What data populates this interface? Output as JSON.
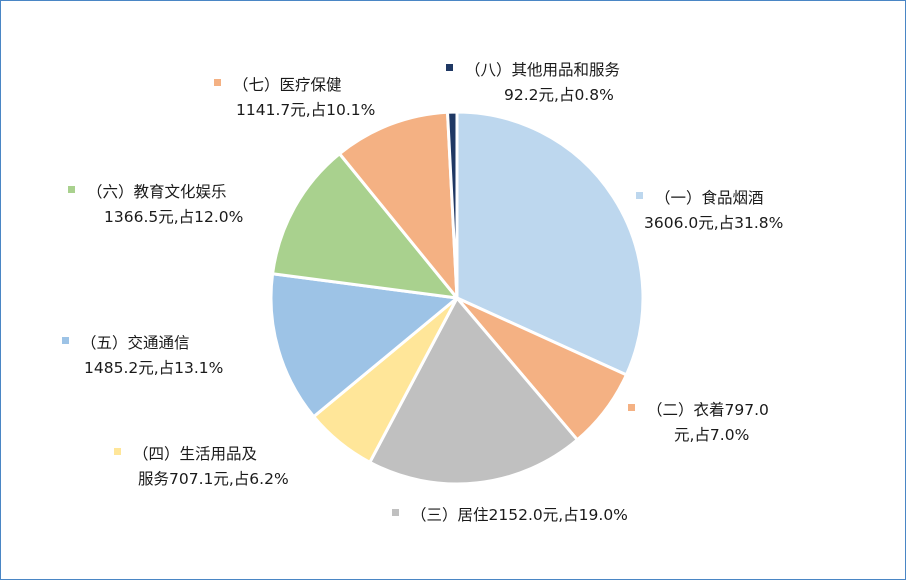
{
  "chart_data": {
    "type": "pie",
    "start_angle_deg": 0,
    "slices": [
      {
        "label": "（一）食品烟酒",
        "text": "3606.0元,占31.8%",
        "value": 3606.0,
        "percent": 31.8,
        "color": "#bdd7ee"
      },
      {
        "label": "（二）衣着797.0",
        "text": "元,占7.0%",
        "value": 797.0,
        "percent": 7.0,
        "color": "#f4b183"
      },
      {
        "label": "（三）居住2152.0元,占19.0%",
        "text": "",
        "value": 2152.0,
        "percent": 19.0,
        "color": "#c0c0c0"
      },
      {
        "label": "（四）生活用品及",
        "text": "服务707.1元,占6.2%",
        "value": 707.1,
        "percent": 6.2,
        "color": "#ffe699"
      },
      {
        "label": "（五）交通通信",
        "text": "1485.2元,占13.1%",
        "value": 1485.2,
        "percent": 13.1,
        "color": "#9dc3e6"
      },
      {
        "label": "（六）教育文化娱乐",
        "text": "1366.5元,占12.0%",
        "value": 1366.5,
        "percent": 12.0,
        "color": "#a9d18e"
      },
      {
        "label": "（七）医疗保健",
        "text": "1141.7元,占10.1%",
        "value": 1141.7,
        "percent": 10.1,
        "color": "#f4b183"
      },
      {
        "label": "（八）其他用品和服务",
        "text": "92.2元,占0.8%",
        "value": 92.2,
        "percent": 0.8,
        "color": "#1f3864"
      }
    ]
  }
}
